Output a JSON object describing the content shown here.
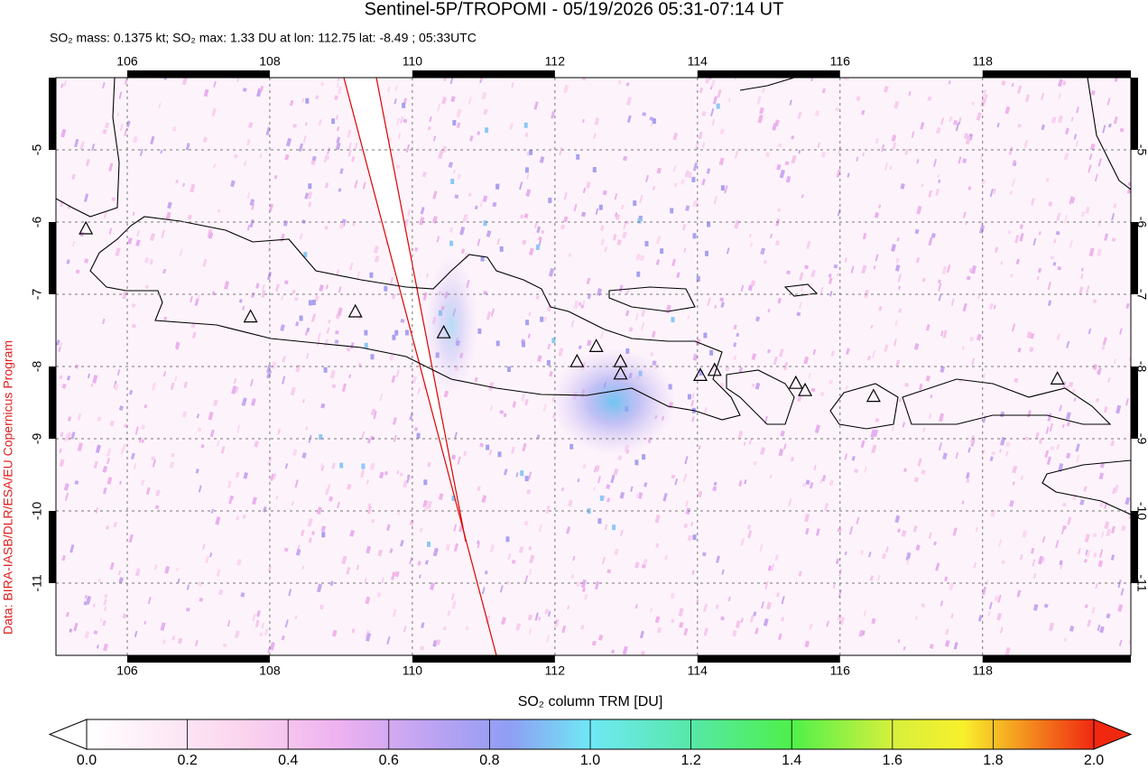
{
  "title": "Sentinel-5P/TROPOMI - 05/19/2026 05:31-07:14 UT",
  "subtitle": "SO₂ mass: 0.1375 kt; SO₂ max: 1.33 DU at lon: 112.75 lat: -8.49 ; 05:33UTC",
  "credit": "Data: BIRA-IASB/DLR/ESA/EU Copernicus Program",
  "map": {
    "xlim": [
      105,
      120.08
    ],
    "ylim": [
      -12,
      -4
    ],
    "xticks": [
      106,
      108,
      110,
      112,
      114,
      116,
      118
    ],
    "yticks": [
      -5,
      -6,
      -7,
      -8,
      -9,
      -10,
      -11
    ],
    "volcanoes": {
      "lon": [
        105.42,
        107.73,
        109.2,
        110.44,
        112.31,
        112.58,
        112.92,
        112.92,
        114.04,
        114.24,
        115.38,
        115.51,
        116.47,
        119.05
      ],
      "lat": [
        -6.1,
        -7.32,
        -7.25,
        -7.54,
        -7.94,
        -7.73,
        -7.94,
        -8.11,
        -8.13,
        -8.06,
        -8.24,
        -8.34,
        -8.42,
        -8.18
      ]
    }
  },
  "colorbar": {
    "label": "SO₂ column TRM [DU]",
    "range": [
      0,
      2
    ],
    "ticks": [
      {
        "value": 0,
        "label": "0.0"
      },
      {
        "value": 0.2,
        "label": "0.2"
      },
      {
        "value": 0.4,
        "label": "0.4"
      },
      {
        "value": 0.6,
        "label": "0.6"
      },
      {
        "value": 0.8,
        "label": "0.8"
      },
      {
        "value": 1,
        "label": "1.0"
      },
      {
        "value": 1.2,
        "label": "1.2"
      },
      {
        "value": 1.4,
        "label": "1.4"
      },
      {
        "value": 1.6,
        "label": "1.6"
      },
      {
        "value": 1.8,
        "label": "1.8"
      },
      {
        "value": 2,
        "label": "2.0"
      }
    ]
  }
}
